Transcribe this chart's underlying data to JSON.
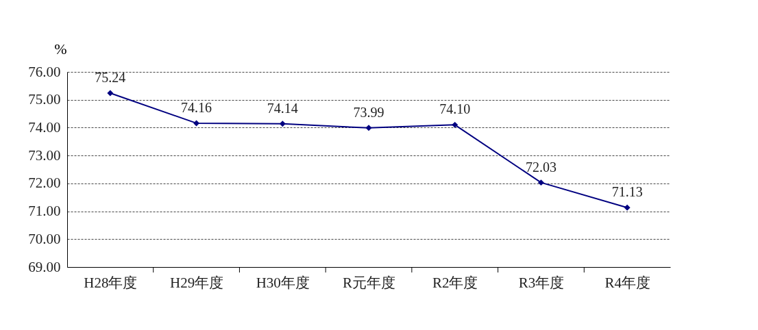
{
  "chart_data": {
    "type": "line",
    "ylabel": "%",
    "categories": [
      "H28年度",
      "H29年度",
      "H30年度",
      "R元年度",
      "R2年度",
      "R3年度",
      "R4年度"
    ],
    "series": [
      {
        "color": "#000080",
        "values": [
          75.24,
          74.16,
          74.14,
          73.99,
          74.1,
          72.03,
          71.13
        ],
        "value_labels": [
          "75.24",
          "74.16",
          "74.14",
          "73.99",
          "74.10",
          "72.03",
          "71.13"
        ]
      }
    ],
    "ylim": [
      69,
      76
    ],
    "yticks": [
      {
        "value": 69,
        "label": "69.00"
      },
      {
        "value": 70,
        "label": "70.00"
      },
      {
        "value": 71,
        "label": "71.00"
      },
      {
        "value": 72,
        "label": "72.00"
      },
      {
        "value": 73,
        "label": "73.00"
      },
      {
        "value": 74,
        "label": "74.00"
      },
      {
        "value": 75,
        "label": "75.00"
      },
      {
        "value": 76,
        "label": "76.00"
      }
    ],
    "grid": "y",
    "marker": "diamond",
    "line_style": "solid"
  }
}
